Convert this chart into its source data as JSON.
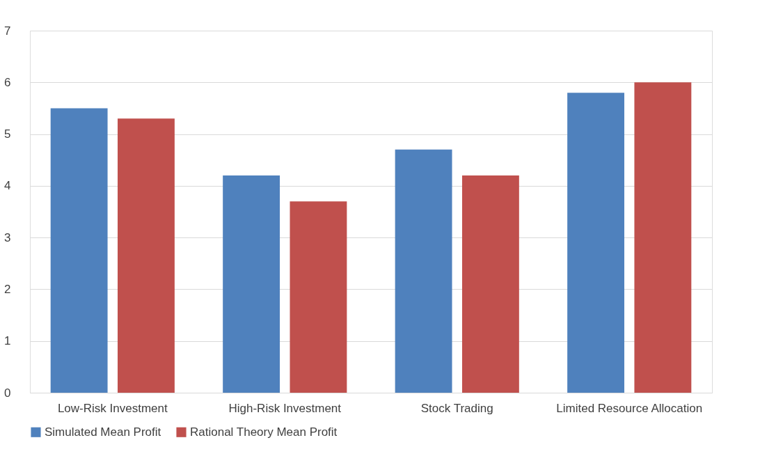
{
  "chart_data": {
    "type": "bar",
    "categories": [
      "Low-Risk Investment",
      "High-Risk Investment",
      "Stock Trading",
      "Limited Resource Allocation"
    ],
    "series": [
      {
        "name": "Simulated Mean Profit",
        "color": "#4f81bd",
        "values": [
          5.5,
          4.2,
          4.7,
          5.8
        ]
      },
      {
        "name": "Rational Theory Mean Profit",
        "color": "#c0504d",
        "values": [
          5.3,
          3.7,
          4.2,
          6.0
        ]
      }
    ],
    "ylim": [
      0,
      7
    ],
    "yticks": [
      0,
      1,
      2,
      3,
      4,
      5,
      6,
      7
    ],
    "grid": "y",
    "legend": "bottom"
  }
}
